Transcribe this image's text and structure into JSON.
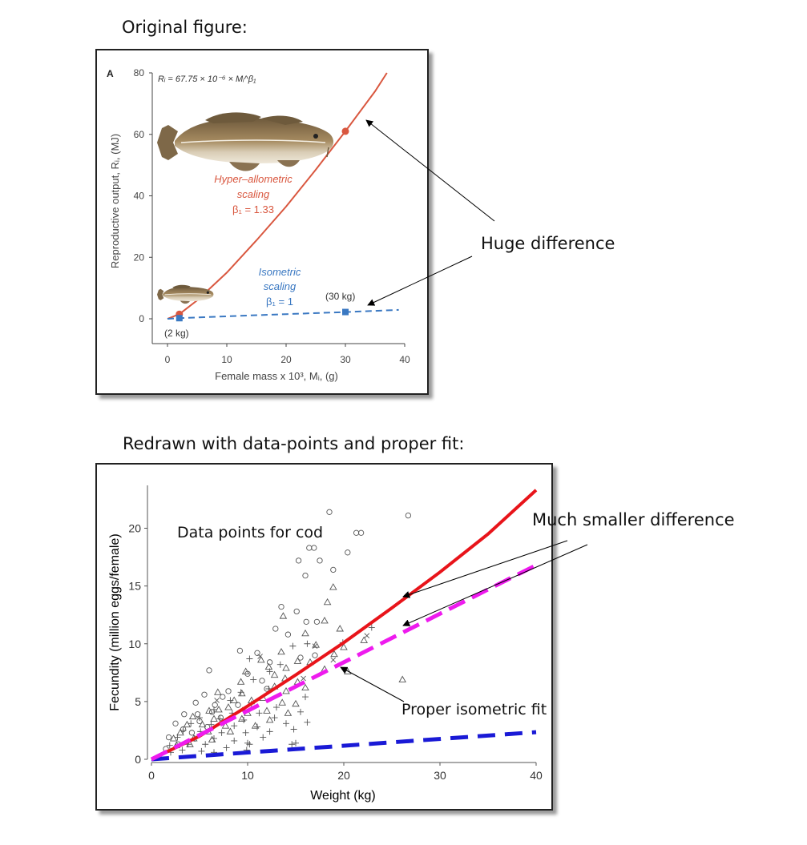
{
  "headings": {
    "original": "Original figure:",
    "redrawn": "Redrawn with data-points and proper fit:"
  },
  "annotations": {
    "huge": "Huge difference",
    "much_smaller": "Much smaller difference",
    "proper_iso": "Proper isometric fit",
    "data_points": "Data points for cod"
  },
  "colors": {
    "red": "#e8141a",
    "magenta": "#ee1bee",
    "blue": "#1a1ad6",
    "orig_red": "#d9573f",
    "orig_blue": "#3a78c2"
  },
  "chart_data": [
    {
      "type": "line",
      "panel_label": "A",
      "equation": "R",
      "xlabel": "Female mass x 10³, Mᵢ, (g)",
      "ylabel": "Reproductive output, Rᵢ, (MJ)",
      "xlim": [
        0,
        40
      ],
      "ylim": [
        0,
        80
      ],
      "xticks": [
        "0",
        "10",
        "20",
        "30",
        "40"
      ],
      "yticks": [
        "0",
        "20",
        "40",
        "60",
        "80"
      ],
      "equation_text": "Rᵢ = 67.75 × 10⁻⁶ × Mᵢ^β₁",
      "series": [
        {
          "name": "Hyper-allometric scaling",
          "beta": "β₁ = 1.33",
          "style": "solid",
          "x": [
            0,
            2,
            5,
            10,
            15,
            20,
            25,
            30,
            35,
            37
          ],
          "y": [
            0,
            1.5,
            6,
            15,
            25.5,
            36.5,
            48.5,
            61,
            74,
            80
          ]
        },
        {
          "name": "Isometric scaling",
          "beta": "β₁ = 1",
          "style": "dashed",
          "x": [
            0,
            2,
            10,
            20,
            30,
            39
          ],
          "y": [
            0,
            0.2,
            0.8,
            1.5,
            2.2,
            2.9
          ]
        }
      ],
      "labels": {
        "hyper": [
          "Hyper–allometric",
          "scaling",
          "β₁ = 1.33"
        ],
        "iso": [
          "Isometric",
          "scaling",
          "β₁ = 1"
        ],
        "kg2": "(2 kg)",
        "kg30": "(30 kg)"
      },
      "markers": [
        {
          "series": "hyper",
          "x": 2,
          "y": 1.5
        },
        {
          "series": "hyper",
          "x": 30,
          "y": 61
        },
        {
          "series": "iso",
          "x": 2,
          "y": 0.2
        },
        {
          "series": "iso",
          "x": 30,
          "y": 2.2
        }
      ]
    },
    {
      "type": "scatter",
      "xlabel": "Weight (kg)",
      "ylabel": "Fecundity (million eggs/female)",
      "xlim": [
        0,
        40
      ],
      "ylim": [
        0,
        22
      ],
      "xticks": [
        "0",
        "10",
        "20",
        "30",
        "40"
      ],
      "yticks": [
        "0",
        "5",
        "10",
        "15",
        "20"
      ],
      "lines": [
        {
          "id": "red-fit",
          "style": "solid",
          "x": [
            0,
            5,
            10,
            15,
            20,
            25,
            30,
            35,
            40
          ],
          "y": [
            0,
            2.0,
            4.6,
            7.3,
            10.1,
            13.1,
            16.2,
            19.5,
            23.3
          ]
        },
        {
          "id": "proper-isometric",
          "style": "dashed",
          "x": [
            0,
            40
          ],
          "y": [
            0,
            16.8
          ]
        },
        {
          "id": "blue-isometric",
          "style": "dashed",
          "x": [
            0,
            40
          ],
          "y": [
            0,
            2.35
          ]
        }
      ],
      "points": {
        "circle": [
          [
            18.5,
            21.4
          ],
          [
            26.7,
            21.1
          ],
          [
            21.3,
            19.6
          ],
          [
            21.8,
            19.6
          ],
          [
            16.4,
            18.3
          ],
          [
            16.9,
            18.3
          ],
          [
            20.4,
            17.9
          ],
          [
            15.3,
            17.2
          ],
          [
            17.5,
            17.2
          ],
          [
            18.9,
            16.4
          ],
          [
            16.0,
            15.9
          ],
          [
            13.5,
            13.2
          ],
          [
            15.1,
            12.8
          ],
          [
            16.1,
            11.9
          ],
          [
            17.2,
            11.9
          ],
          [
            12.9,
            11.3
          ],
          [
            14.2,
            10.8
          ],
          [
            9.2,
            9.4
          ],
          [
            11.0,
            9.2
          ],
          [
            17.0,
            9.0
          ],
          [
            15.5,
            8.8
          ],
          [
            12.3,
            8.4
          ],
          [
            6.0,
            7.7
          ],
          [
            10.0,
            7.4
          ],
          [
            11.5,
            6.8
          ],
          [
            12.0,
            6.1
          ],
          [
            8.0,
            5.9
          ],
          [
            5.5,
            5.6
          ],
          [
            7.4,
            5.4
          ],
          [
            4.6,
            4.9
          ],
          [
            6.6,
            4.7
          ],
          [
            9.0,
            4.7
          ],
          [
            3.4,
            3.9
          ],
          [
            4.8,
            3.9
          ],
          [
            6.3,
            4.1
          ],
          [
            7.2,
            3.6
          ],
          [
            2.5,
            3.1
          ],
          [
            5.0,
            3.3
          ],
          [
            3.3,
            2.6
          ],
          [
            5.8,
            2.8
          ],
          [
            1.8,
            1.9
          ],
          [
            4.2,
            2.3
          ],
          [
            2.8,
            1.3
          ],
          [
            1.5,
            0.9
          ]
        ],
        "triangle": [
          [
            18.9,
            14.9
          ],
          [
            18.3,
            13.6
          ],
          [
            13.7,
            12.4
          ],
          [
            18.0,
            12.0
          ],
          [
            19.6,
            11.3
          ],
          [
            16.0,
            10.9
          ],
          [
            22.1,
            10.3
          ],
          [
            17.1,
            9.9
          ],
          [
            20.0,
            9.7
          ],
          [
            13.5,
            9.3
          ],
          [
            19.0,
            9.1
          ],
          [
            11.4,
            8.6
          ],
          [
            15.2,
            8.5
          ],
          [
            16.5,
            8.4
          ],
          [
            12.2,
            8.0
          ],
          [
            14.0,
            7.9
          ],
          [
            18.0,
            7.8
          ],
          [
            20.4,
            7.6
          ],
          [
            9.8,
            7.6
          ],
          [
            12.8,
            7.3
          ],
          [
            13.9,
            7.0
          ],
          [
            15.2,
            6.7
          ],
          [
            26.1,
            6.9
          ],
          [
            9.3,
            6.7
          ],
          [
            12.8,
            6.3
          ],
          [
            16.0,
            6.2
          ],
          [
            14.0,
            5.9
          ],
          [
            6.9,
            5.8
          ],
          [
            9.4,
            5.7
          ],
          [
            11.6,
            5.3
          ],
          [
            8.6,
            5.1
          ],
          [
            10.4,
            5.1
          ],
          [
            13.6,
            4.9
          ],
          [
            15.0,
            4.8
          ],
          [
            8.0,
            4.5
          ],
          [
            12.0,
            4.2
          ],
          [
            6.0,
            4.2
          ],
          [
            7.0,
            4.3
          ],
          [
            10.0,
            4.0
          ],
          [
            14.2,
            4.0
          ],
          [
            4.3,
            3.7
          ],
          [
            6.5,
            3.5
          ],
          [
            9.4,
            3.5
          ],
          [
            12.3,
            3.4
          ],
          [
            3.7,
            3.0
          ],
          [
            5.3,
            3.0
          ],
          [
            7.7,
            2.9
          ],
          [
            10.8,
            2.9
          ],
          [
            3.0,
            2.3
          ],
          [
            5.9,
            2.4
          ],
          [
            8.2,
            2.4
          ],
          [
            2.3,
            1.8
          ],
          [
            4.4,
            1.8
          ],
          [
            6.3,
            1.7
          ],
          [
            2.6,
            1.2
          ],
          [
            4.0,
            1.3
          ]
        ],
        "cross": [
          [
            19.9,
            10.1
          ],
          [
            22.9,
            11.4
          ],
          [
            14.7,
            9.8
          ],
          [
            16.2,
            10.0
          ],
          [
            10.2,
            8.7
          ],
          [
            13.4,
            8.2
          ],
          [
            12.3,
            7.6
          ],
          [
            10.6,
            6.9
          ],
          [
            12.2,
            6.1
          ],
          [
            9.3,
            5.8
          ],
          [
            16.0,
            5.4
          ],
          [
            8.2,
            5.1
          ],
          [
            10.4,
            4.8
          ],
          [
            13.0,
            4.5
          ],
          [
            6.5,
            4.3
          ],
          [
            8.4,
            4.0
          ],
          [
            11.2,
            4.0
          ],
          [
            15.5,
            4.1
          ],
          [
            5.0,
            3.6
          ],
          [
            7.1,
            3.5
          ],
          [
            9.6,
            3.4
          ],
          [
            12.8,
            3.6
          ],
          [
            4.1,
            3.1
          ],
          [
            6.2,
            3.0
          ],
          [
            8.6,
            2.9
          ],
          [
            11.0,
            2.8
          ],
          [
            14.0,
            3.1
          ],
          [
            16.2,
            3.2
          ],
          [
            3.3,
            2.5
          ],
          [
            5.1,
            2.4
          ],
          [
            7.3,
            2.3
          ],
          [
            9.8,
            2.3
          ],
          [
            12.3,
            2.4
          ],
          [
            2.7,
            1.9
          ],
          [
            4.5,
            1.8
          ],
          [
            6.5,
            1.8
          ],
          [
            8.6,
            1.6
          ],
          [
            11.6,
            1.9
          ],
          [
            1.9,
            1.2
          ],
          [
            3.8,
            1.3
          ],
          [
            5.6,
            1.3
          ],
          [
            7.8,
            1.0
          ],
          [
            10.2,
            1.3
          ],
          [
            14.8,
            2.6
          ],
          [
            2.0,
            0.6
          ],
          [
            3.2,
            0.8
          ],
          [
            5.2,
            0.7
          ],
          [
            6.5,
            0.6
          ],
          [
            9.9,
            0.8
          ],
          [
            15.0,
            1.4
          ],
          [
            10.0,
            1.4
          ],
          [
            14.6,
            1.3
          ]
        ],
        "x_mark": [
          [
            22.4,
            10.7
          ],
          [
            17.0,
            9.8
          ],
          [
            18.9,
            8.6
          ],
          [
            11.3,
            8.9
          ],
          [
            15.8,
            7.0
          ],
          [
            6.8,
            5.1
          ],
          [
            9.7,
            4.3
          ]
        ]
      }
    }
  ]
}
